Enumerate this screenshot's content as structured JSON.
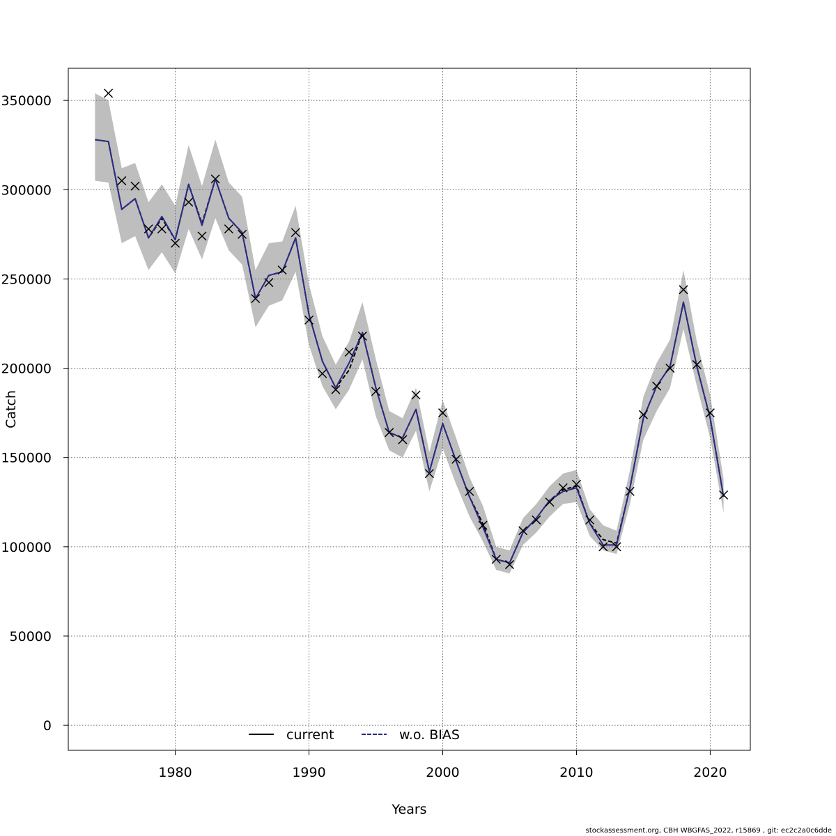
{
  "chart_data": {
    "type": "line",
    "xlabel": "Years",
    "ylabel": "Catch",
    "xlim": [
      1972,
      2023
    ],
    "ylim": [
      -14000,
      368000
    ],
    "x_ticks": [
      1980,
      1990,
      2000,
      2010,
      2020
    ],
    "y_ticks": [
      0,
      50000,
      100000,
      150000,
      200000,
      250000,
      300000,
      350000
    ],
    "grid": true,
    "legend_position": "bottom-center",
    "years": [
      1974,
      1975,
      1976,
      1977,
      1978,
      1979,
      1980,
      1981,
      1982,
      1983,
      1984,
      1985,
      1986,
      1987,
      1988,
      1989,
      1990,
      1991,
      1992,
      1993,
      1994,
      1995,
      1996,
      1997,
      1998,
      1999,
      2000,
      2001,
      2002,
      2003,
      2004,
      2005,
      2006,
      2007,
      2008,
      2009,
      2010,
      2011,
      2012,
      2013,
      2014,
      2015,
      2016,
      2017,
      2018,
      2019,
      2020,
      2021
    ],
    "series": [
      {
        "name": "current",
        "color": "#000000",
        "values": [
          328000,
          327000,
          289000,
          295000,
          273000,
          284000,
          272000,
          303000,
          281000,
          306000,
          284000,
          276000,
          239000,
          252000,
          254000,
          273000,
          230000,
          204000,
          189000,
          199000,
          220000,
          189000,
          164000,
          161000,
          177000,
          142000,
          169000,
          148000,
          128000,
          113000,
          93000,
          91000,
          108000,
          116000,
          126000,
          132000,
          134000,
          113000,
          104000,
          102000,
          133000,
          172000,
          190000,
          201000,
          237000,
          201000,
          172000,
          128000
        ]
      },
      {
        "name": "w.o. BIAS",
        "color": "#2b2b85",
        "values": [
          328000,
          327000,
          289000,
          295000,
          273000,
          285000,
          272000,
          303000,
          280000,
          306000,
          284000,
          276000,
          239000,
          252000,
          254000,
          273000,
          230000,
          204000,
          189000,
          203000,
          220000,
          189000,
          164000,
          161000,
          177000,
          142000,
          169000,
          148000,
          128000,
          111000,
          93000,
          91000,
          108000,
          116000,
          126000,
          131000,
          133000,
          113000,
          101000,
          101000,
          133000,
          172000,
          190000,
          201000,
          237000,
          201000,
          172000,
          128000
        ]
      }
    ],
    "band": {
      "color": "#bebebe",
      "lower": [
        305000,
        304000,
        270000,
        274000,
        255000,
        265000,
        253000,
        278000,
        261000,
        284000,
        266000,
        258000,
        223000,
        235000,
        238000,
        254000,
        213000,
        190000,
        177000,
        188000,
        205000,
        173000,
        154000,
        150000,
        165000,
        131000,
        155000,
        135000,
        117000,
        103000,
        87000,
        85000,
        101000,
        108000,
        117000,
        124000,
        125000,
        106000,
        98000,
        96000,
        124000,
        160000,
        176000,
        189000,
        222000,
        190000,
        161000,
        119000
      ],
      "upper": [
        354000,
        350000,
        312000,
        315000,
        293000,
        303000,
        291000,
        325000,
        302000,
        328000,
        304000,
        296000,
        255000,
        270000,
        271000,
        291000,
        247000,
        218000,
        202000,
        215000,
        237000,
        205000,
        176000,
        172000,
        189000,
        153000,
        182000,
        161000,
        139000,
        123000,
        100000,
        98000,
        116000,
        124000,
        134000,
        141000,
        143000,
        121000,
        112000,
        109000,
        143000,
        184000,
        203000,
        216000,
        255000,
        215000,
        185000,
        138000
      ]
    },
    "observations": {
      "marker": "x",
      "color": "#000000",
      "x": [
        1975,
        1976,
        1977,
        1978,
        1979,
        1980,
        1981,
        1982,
        1983,
        1984,
        1985,
        1986,
        1987,
        1988,
        1989,
        1990,
        1991,
        1992,
        1993,
        1994,
        1995,
        1996,
        1997,
        1998,
        1999,
        2000,
        2001,
        2002,
        2003,
        2004,
        2005,
        2006,
        2007,
        2008,
        2009,
        2010,
        2011,
        2012,
        2013,
        2014,
        2015,
        2016,
        2017,
        2018,
        2019,
        2020,
        2021
      ],
      "y": [
        354000,
        305000,
        302000,
        278000,
        278000,
        270000,
        293000,
        274000,
        306000,
        278000,
        275000,
        239000,
        248000,
        255000,
        276000,
        227000,
        197000,
        188000,
        209000,
        218000,
        187000,
        164000,
        160000,
        185000,
        141000,
        175000,
        149000,
        131000,
        112000,
        93000,
        90000,
        109000,
        115000,
        125000,
        133000,
        135000,
        115000,
        100000,
        100000,
        131000,
        174000,
        190000,
        200000,
        244000,
        202000,
        175000,
        129000
      ]
    }
  },
  "footer": "stockassessment.org, CBH  WBGFAS_2022, r15869 , git: ec2c2a0c6dde"
}
